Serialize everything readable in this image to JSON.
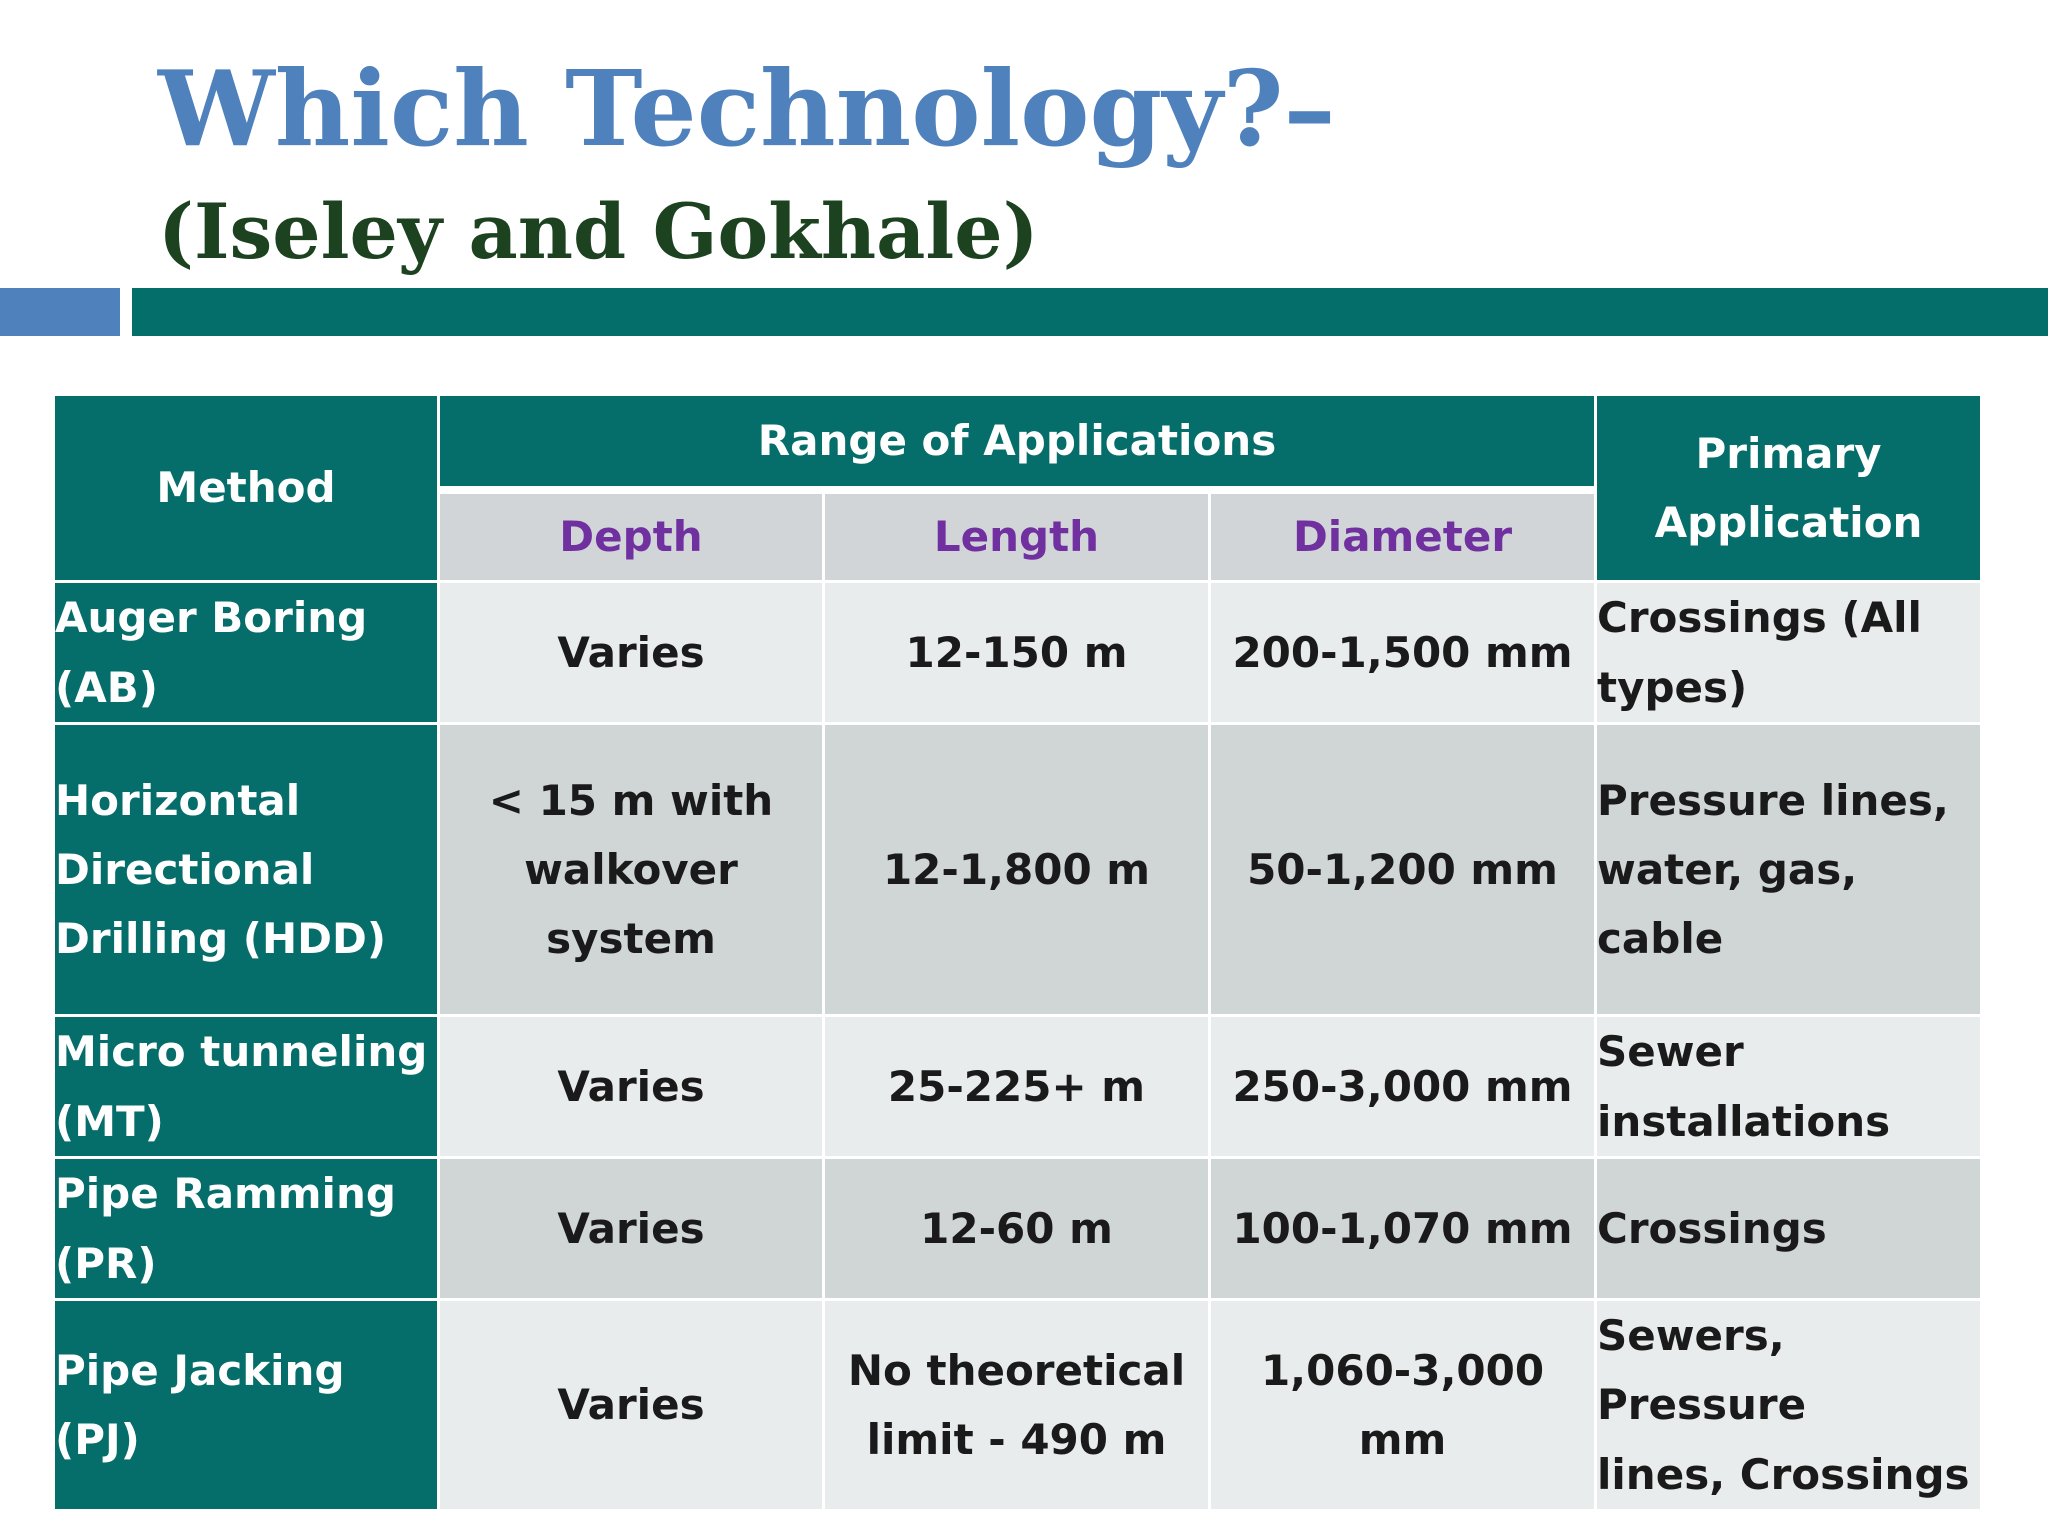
{
  "slide": {
    "title": "Which Technology?–",
    "subtitle": "(Iseley and Gokhale)"
  },
  "table": {
    "headers": {
      "method": "Method",
      "range": "Range of  Applications",
      "depth": "Depth",
      "length": "Length",
      "diameter": "Diameter",
      "primary_line1": "Primary",
      "primary_line2": "Application"
    },
    "rows": [
      {
        "method": [
          "Auger Boring",
          "(AB)"
        ],
        "depth": [
          "Varies"
        ],
        "length": [
          "12-150 m"
        ],
        "diameter": [
          "200-1,500 mm"
        ],
        "application": [
          "Crossings (All",
          "types)"
        ]
      },
      {
        "method": [
          "Horizontal",
          "Directional",
          "Drilling (HDD)"
        ],
        "depth": [
          "< 15 m with",
          "walkover system"
        ],
        "length": [
          "12-1,800 m"
        ],
        "diameter": [
          "50-1,200 mm"
        ],
        "application": [
          "Pressure lines,",
          "water, gas, cable"
        ]
      },
      {
        "method": [
          "Micro tunneling",
          "(MT)"
        ],
        "depth": [
          "Varies"
        ],
        "length": [
          "25-225+ m"
        ],
        "diameter": [
          "250-3,000 mm"
        ],
        "application": [
          "Sewer",
          "installations"
        ]
      },
      {
        "method": [
          "Pipe Ramming",
          "(PR)"
        ],
        "depth": [
          "Varies"
        ],
        "length": [
          "12-60 m"
        ],
        "diameter": [
          "100-1,070 mm"
        ],
        "application": [
          "Crossings"
        ]
      },
      {
        "method": [
          "Pipe Jacking (PJ)"
        ],
        "depth": [
          "Varies"
        ],
        "length": [
          "No theoretical",
          "limit - 490 m"
        ],
        "diameter": [
          "1,060-3,000 mm"
        ],
        "application": [
          "Sewers, Pressure",
          "lines, Crossings"
        ]
      }
    ]
  },
  "colors": {
    "title_blue": "#4f81bd",
    "subtitle_green": "#1c4220",
    "teal": "#056e6a",
    "subheader_purple": "#7030a0"
  }
}
